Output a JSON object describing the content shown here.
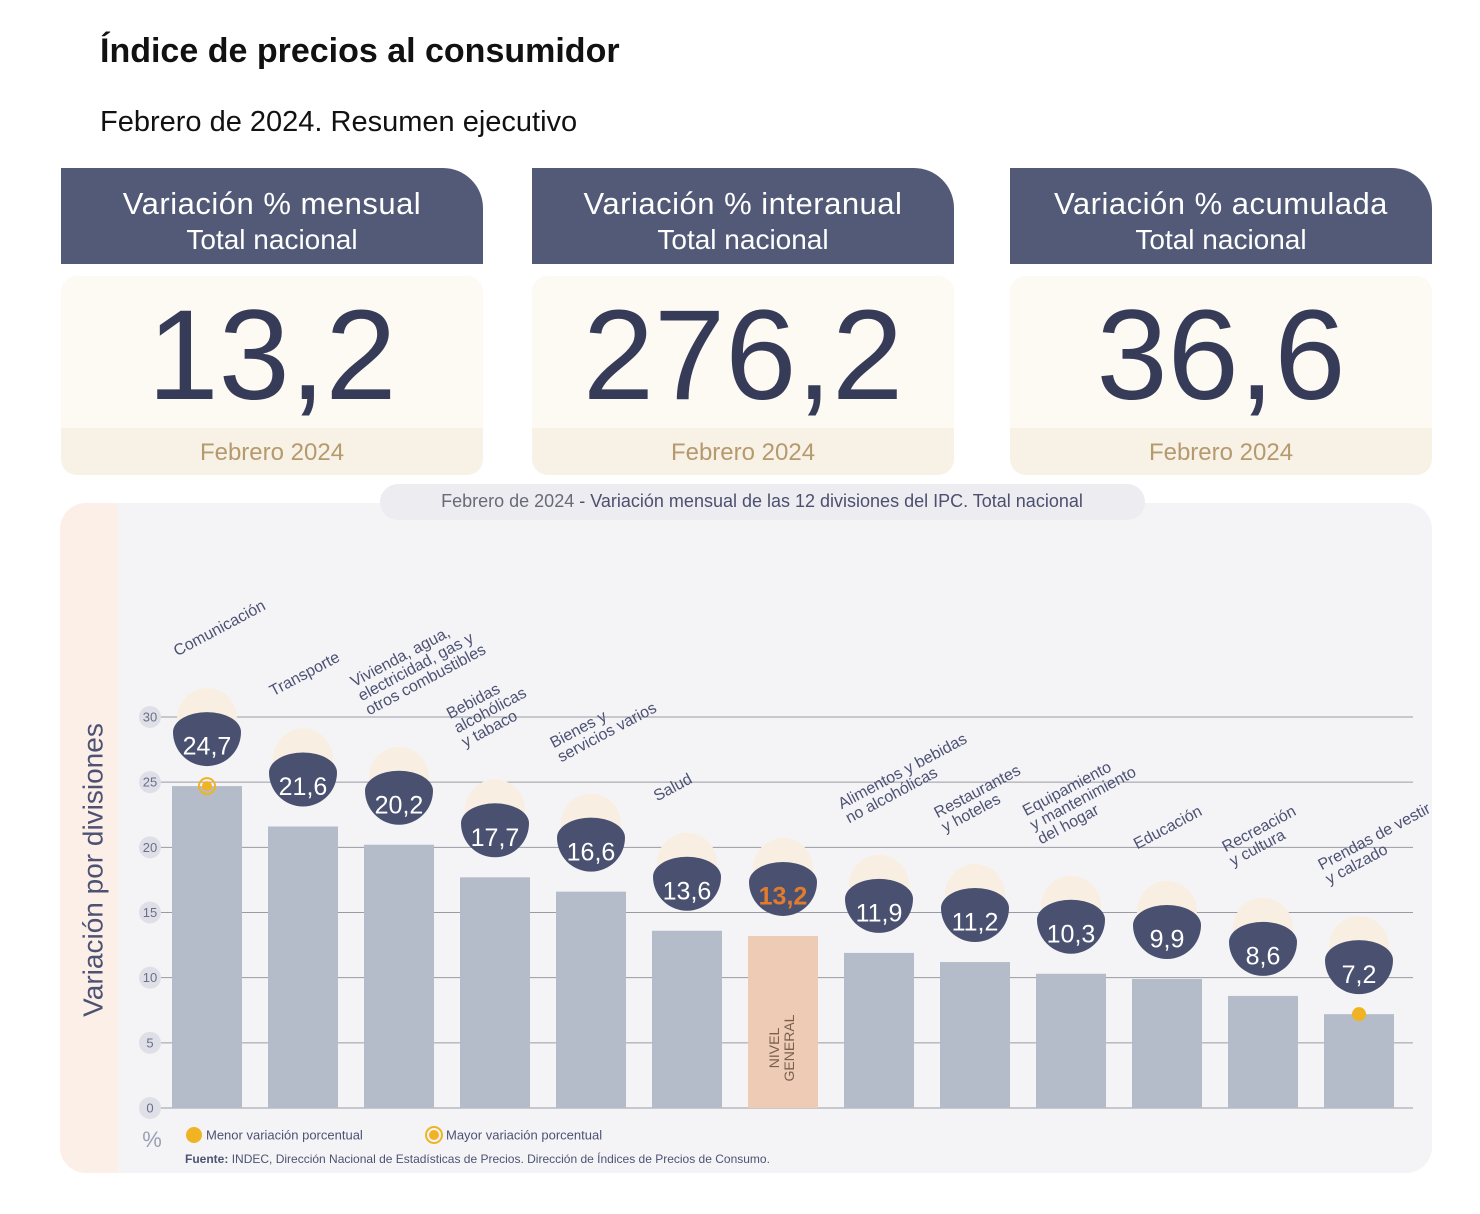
{
  "header": {
    "title": "Índice de precios al consumidor",
    "subtitle": "Febrero de 2024. Resumen ejecutivo"
  },
  "cards": [
    {
      "title": "Variación % mensual",
      "subtitle": "Total nacional",
      "value": "13,2",
      "period": "Febrero 2024"
    },
    {
      "title": "Variación % interanual",
      "subtitle": "Total nacional",
      "value": "276,2",
      "period": "Febrero 2024"
    },
    {
      "title": "Variación % acumulada",
      "subtitle": "Total nacional",
      "value": "36,6",
      "period": "Febrero 2024"
    }
  ],
  "chart_data": {
    "type": "bar",
    "title_parts": [
      "Febrero de 2024",
      "- Variación mensual de las 12 divisiones del IPC. Total nacional"
    ],
    "ylabel": "Variación por divisiones",
    "unit": "%",
    "categories": [
      "Comunicación",
      "Transporte",
      "Vivienda, agua,\nelectricidad, gas y\notros combustibles",
      "Bebidas\nalcohólicas\ny tabaco",
      "Bienes y\nservicios varios",
      "Salud",
      "NIVEL\nGENERAL",
      "Alimentos y bebidas\nno alcohólicas",
      "Restaurantes\ny hoteles",
      "Equipamiento\ny mantenimiento\ndel hogar",
      "Educación",
      "Recreación\ny cultura",
      "Prendas de vestir\ny calzado"
    ],
    "values": [
      24.7,
      21.6,
      20.2,
      17.7,
      16.6,
      13.6,
      13.2,
      11.9,
      11.2,
      10.3,
      9.9,
      8.6,
      7.2
    ],
    "value_labels": [
      "24,7",
      "21,6",
      "20,2",
      "17,7",
      "16,6",
      "13,6",
      "13,2",
      "11,9",
      "11,2",
      "10,3",
      "9,9",
      "8,6",
      "7,2"
    ],
    "color": "#b5bcc9",
    "highlight_index": 6,
    "highlight_color": "#edcbb4",
    "highlight_label_color": "#e27b2e",
    "ylim": [
      0,
      30
    ],
    "yticks": [
      0,
      5,
      10,
      15,
      20,
      25,
      30
    ],
    "grid": true,
    "legend": [
      {
        "name": "Menor variación porcentual",
        "color": "#f0b323"
      },
      {
        "name": "Mayor variación porcentual",
        "color": "#f0b323"
      }
    ],
    "source_label": "Fuente:",
    "source": "INDEC, Dirección Nacional de Estadísticas de Precios. Dirección de Índices de Precios de Consumo."
  }
}
